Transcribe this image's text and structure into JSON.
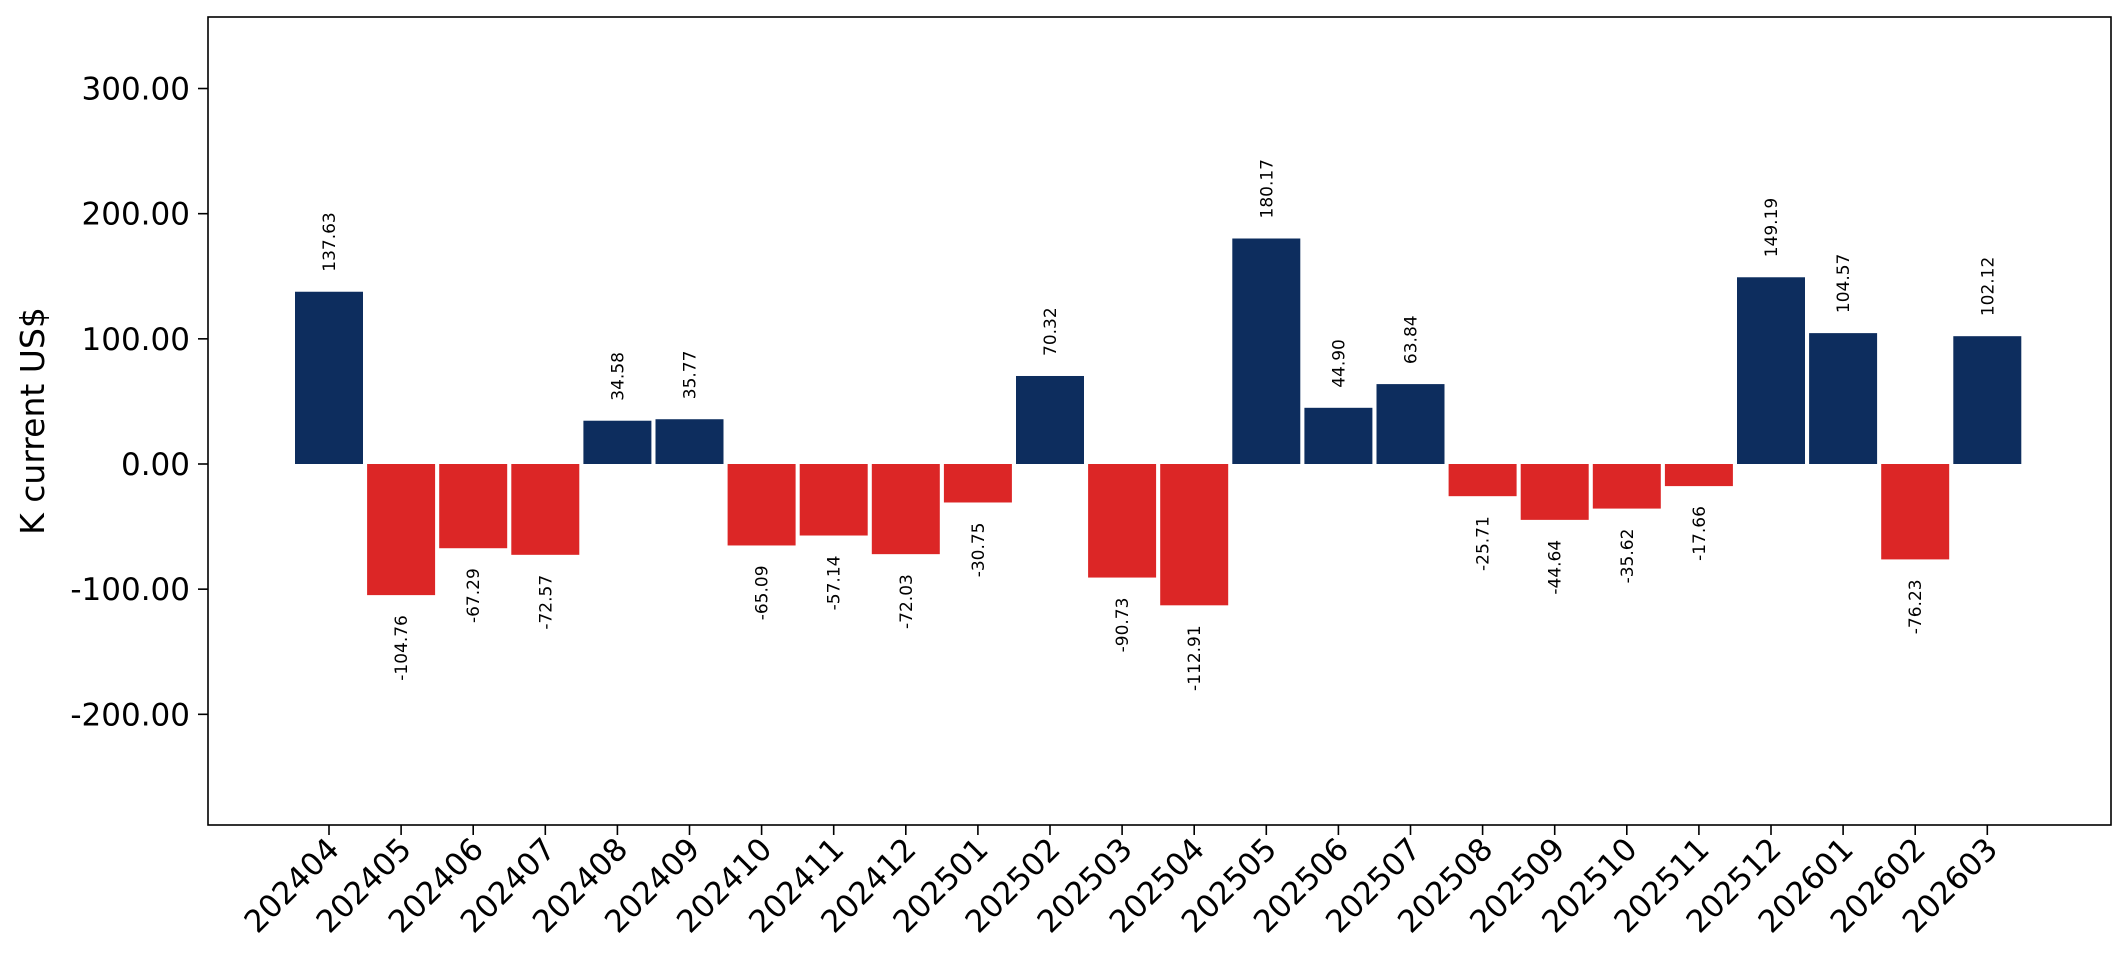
{
  "chart_data": {
    "type": "bar",
    "title": "",
    "xlabel": "",
    "ylabel": "K current US$",
    "ylim": [
      -290,
      357
    ],
    "yticks": [
      "-200.00",
      "-100.00",
      "0.00",
      "100.00",
      "200.00",
      "300.00"
    ],
    "grid": false,
    "categories": [
      "202404",
      "202405",
      "202406",
      "202407",
      "202408",
      "202409",
      "202410",
      "202411",
      "202412",
      "202501",
      "202502",
      "202503",
      "202504",
      "202505",
      "202506",
      "202507",
      "202508",
      "202509",
      "202510",
      "202511",
      "202512",
      "202601",
      "202602",
      "202603"
    ],
    "values": [
      137.63,
      -104.76,
      -67.29,
      -72.57,
      34.58,
      35.77,
      -65.09,
      -57.14,
      -72.03,
      -30.75,
      70.32,
      -90.73,
      -112.91,
      180.17,
      44.9,
      63.84,
      -25.71,
      -44.64,
      -35.62,
      -17.66,
      149.19,
      104.57,
      -76.23,
      102.12
    ],
    "data_labels": [
      "137.63",
      "-104.76",
      "-67.29",
      "-72.57",
      "34.58",
      "35.77",
      "-65.09",
      "-57.14",
      "-72.03",
      "-30.75",
      "70.32",
      "-90.73",
      "-112.91",
      "180.17",
      "44.90",
      "63.84",
      "-25.71",
      "-44.64",
      "-35.62",
      "-17.66",
      "149.19",
      "104.57",
      "-76.23",
      "102.12"
    ],
    "colors": {
      "positive": "#0d2d5e",
      "negative": "#dc2626",
      "axis": "#000000"
    }
  }
}
